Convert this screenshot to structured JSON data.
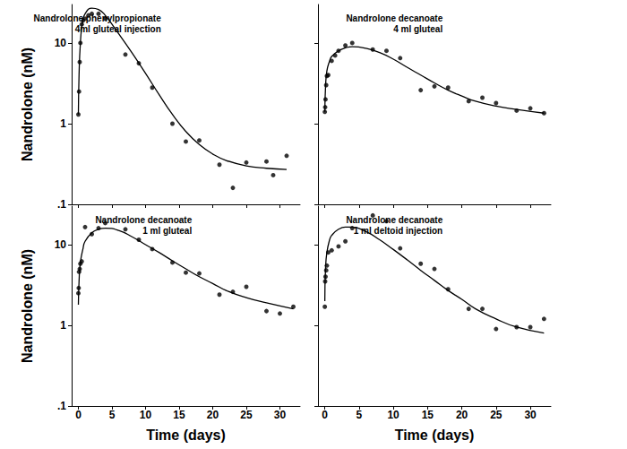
{
  "chart_data": [
    {
      "type": "scatter",
      "title": [
        "Nandrolone phenylpropionate",
        "4ml gluteal injection"
      ],
      "ylabel": "Nandrolone (nM)",
      "log": "y",
      "tick_labels": "y",
      "xlim": [
        -1,
        33
      ],
      "xticks": [
        0,
        5,
        10,
        15,
        20,
        25,
        30
      ],
      "ylim": [
        0.1,
        30
      ],
      "yticks": [
        {
          "value": 0.1,
          "label": ".1"
        },
        1,
        10
      ],
      "series": [
        {
          "type": "scatter",
          "marker": "circle",
          "color": "#000000",
          "x": [
            0,
            0.1,
            0.2,
            0.3,
            0.5,
            0.7,
            1,
            1.5,
            2,
            3,
            4,
            7,
            9,
            11,
            14,
            16,
            18,
            21,
            23,
            25,
            28,
            29,
            31
          ],
          "values": [
            1.3,
            2.5,
            5.8,
            10,
            17,
            19,
            20,
            22,
            23,
            23,
            20,
            7.2,
            5.6,
            2.8,
            1.0,
            0.6,
            0.62,
            0.31,
            0.16,
            0.33,
            0.34,
            0.23,
            0.4
          ]
        },
        {
          "type": "line",
          "line_style": "solid",
          "color": "#000000",
          "x": [
            0,
            0.1,
            0.3,
            0.6,
            1,
            2,
            3,
            4,
            6,
            8,
            10,
            12,
            14,
            16,
            18,
            20,
            22,
            25,
            28,
            31
          ],
          "values": [
            1.3,
            4,
            10,
            18,
            23,
            27,
            26,
            22,
            13,
            7.5,
            4.2,
            2.3,
            1.3,
            0.8,
            0.55,
            0.42,
            0.35,
            0.3,
            0.28,
            0.27
          ]
        }
      ]
    },
    {
      "type": "scatter",
      "title": [
        "Nandrolone decanoate",
        "4 ml gluteal"
      ],
      "log": "y",
      "tick_labels": false,
      "xlim": [
        -1,
        33
      ],
      "xticks": [
        0,
        5,
        10,
        15,
        20,
        25,
        30
      ],
      "ylim": [
        0.1,
        30
      ],
      "yticks": [
        {
          "value": 0.1,
          "label": ".1"
        },
        1,
        10
      ],
      "series": [
        {
          "type": "scatter",
          "marker": "circle",
          "color": "#000000",
          "x": [
            0,
            0.05,
            0.1,
            0.2,
            0.3,
            0.5,
            1,
            1.5,
            2,
            3,
            4,
            7,
            9,
            11,
            14,
            16,
            18,
            21,
            23,
            25,
            28,
            30,
            32
          ],
          "values": [
            1.4,
            1.6,
            2,
            3,
            3.9,
            4,
            6,
            7,
            8,
            9.3,
            10,
            8.3,
            8,
            6.5,
            2.6,
            2.9,
            2.8,
            1.9,
            2.1,
            1.8,
            1.45,
            1.55,
            1.35
          ]
        },
        {
          "type": "line",
          "line_style": "solid",
          "color": "#000000",
          "x": [
            0,
            0.1,
            0.3,
            0.7,
            1,
            2,
            3,
            4,
            6,
            8,
            10,
            12,
            14,
            16,
            18,
            20,
            22,
            25,
            28,
            32
          ],
          "values": [
            1.4,
            2.8,
            4.5,
            6,
            6.8,
            8,
            8.7,
            9,
            8.6,
            7.6,
            6.3,
            5,
            4,
            3.2,
            2.6,
            2.2,
            1.9,
            1.65,
            1.5,
            1.35
          ]
        }
      ]
    },
    {
      "type": "scatter",
      "title": [
        "Nandrolone decanoate",
        "1 ml gluteal"
      ],
      "xlabel": "Time (days)",
      "ylabel": "Nandrolone (nM)",
      "log": "y",
      "tick_labels": true,
      "xlim": [
        -1,
        33
      ],
      "xticks": [
        0,
        5,
        10,
        15,
        20,
        25,
        30
      ],
      "ylim": [
        0.1,
        30
      ],
      "yticks": [
        {
          "value": 0.1,
          "label": ".1"
        },
        1,
        10
      ],
      "series": [
        {
          "type": "scatter",
          "marker": "circle",
          "color": "#000000",
          "x": [
            0,
            0.05,
            0.1,
            0.2,
            0.3,
            0.5,
            1,
            2,
            3,
            4,
            7,
            9,
            11,
            14,
            16,
            18,
            21,
            23,
            25,
            28,
            30,
            32
          ],
          "values": [
            2.5,
            2.9,
            4.6,
            5,
            5.8,
            6.2,
            16.5,
            13.5,
            16,
            18.5,
            15.5,
            11.5,
            8.8,
            6,
            4.5,
            4.4,
            2.4,
            2.6,
            3,
            1.5,
            1.4,
            1.7
          ]
        },
        {
          "type": "line",
          "line_style": "solid",
          "color": "#000000",
          "x": [
            0,
            0.1,
            0.3,
            0.7,
            1,
            2,
            3,
            4,
            6,
            8,
            10,
            12,
            14,
            16,
            18,
            20,
            22,
            25,
            28,
            32
          ],
          "values": [
            1.8,
            3.5,
            6,
            9,
            11,
            14,
            15.5,
            16,
            15,
            12.5,
            10,
            8,
            6.3,
            5,
            4,
            3.3,
            2.7,
            2.2,
            1.9,
            1.6
          ]
        }
      ]
    },
    {
      "type": "scatter",
      "title": [
        "Nandrolone decanoate",
        "1 ml deltoid injection"
      ],
      "xlabel": "Time (days)",
      "log": "y",
      "tick_labels": "x",
      "xlim": [
        -1,
        33
      ],
      "xticks": [
        0,
        5,
        10,
        15,
        20,
        25,
        30
      ],
      "ylim": [
        0.1,
        30
      ],
      "yticks": [
        {
          "value": 0.1,
          "label": ".1"
        },
        1,
        10
      ],
      "series": [
        {
          "type": "scatter",
          "marker": "circle",
          "color": "#000000",
          "x": [
            0,
            0.05,
            0.1,
            0.2,
            0.3,
            0.5,
            1,
            2,
            3,
            4,
            7,
            9,
            11,
            14,
            16,
            18,
            21,
            23,
            25,
            28,
            30,
            32
          ],
          "values": [
            1.7,
            3.5,
            4,
            4.8,
            5.5,
            8,
            8.5,
            9.5,
            11,
            16,
            23,
            19.5,
            9,
            5.8,
            5,
            2.8,
            1.6,
            1.6,
            0.9,
            0.95,
            0.95,
            1.2
          ]
        },
        {
          "type": "line",
          "line_style": "solid",
          "color": "#000000",
          "x": [
            0,
            0.1,
            0.3,
            0.7,
            1,
            2,
            3,
            4,
            6,
            8,
            10,
            12,
            14,
            16,
            18,
            20,
            22,
            25,
            28,
            32
          ],
          "values": [
            2,
            5,
            8,
            11.5,
            13,
            15.5,
            16.5,
            16.5,
            14.5,
            11.5,
            8.7,
            6.5,
            4.8,
            3.6,
            2.7,
            2.1,
            1.6,
            1.2,
            0.95,
            0.8
          ]
        }
      ]
    }
  ]
}
